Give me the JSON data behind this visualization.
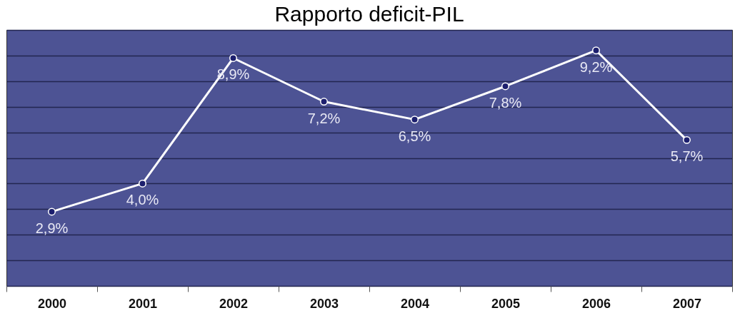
{
  "chart_data": {
    "type": "line",
    "title": "Rapporto deficit-PIL",
    "categories": [
      "2000",
      "2001",
      "2002",
      "2003",
      "2004",
      "2005",
      "2006",
      "2007"
    ],
    "series": [
      {
        "color": "#ffffff",
        "values": [
          2.9,
          4.0,
          8.9,
          7.2,
          6.5,
          7.8,
          9.2,
          5.7
        ],
        "value_labels": [
          "2,9%",
          "4,0%",
          "8,9%",
          "7,2%",
          "6,5%",
          "7,8%",
          "9,2%",
          "5,7%"
        ]
      }
    ],
    "ylim": [
      0,
      10
    ],
    "yticks": [
      {
        "value": 0,
        "label": null
      },
      {
        "value": 1,
        "label": null
      },
      {
        "value": 2,
        "label": null
      },
      {
        "value": 3,
        "label": null
      },
      {
        "value": 4,
        "label": null
      },
      {
        "value": 5,
        "label": null
      },
      {
        "value": 6,
        "label": null
      },
      {
        "value": 7,
        "label": null
      },
      {
        "value": 8,
        "label": null
      },
      {
        "value": 9,
        "label": null
      },
      {
        "value": 10,
        "label": null
      }
    ],
    "grid": "y",
    "tick_labels": "x",
    "marker": "circle",
    "line_style": "solid",
    "legend": false
  }
}
